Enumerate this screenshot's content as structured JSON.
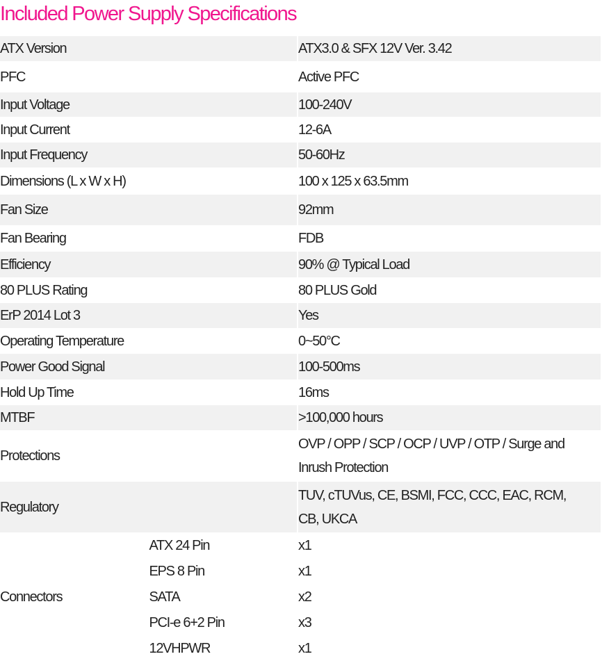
{
  "title": "Included Power Supply Specifications",
  "colors": {
    "title": "#f0168e",
    "stripe": "#f1f1f1"
  },
  "specs": [
    {
      "label": "ATX Version",
      "value": "ATX3.0 & SFX 12V Ver. 3.42"
    },
    {
      "label": "PFC",
      "value": "Active PFC"
    },
    {
      "label": "Input Voltage",
      "value": "100-240V"
    },
    {
      "label": "Input Current",
      "value": "12-6A"
    },
    {
      "label": "Input Frequency",
      "value": "50-60Hz"
    },
    {
      "label": "Dimensions (L x W x H)",
      "value": "100 x 125 x 63.5mm"
    },
    {
      "label": "Fan Size",
      "value": "92mm"
    },
    {
      "label": "Fan Bearing",
      "value": "FDB"
    },
    {
      "label": "Efficiency",
      "value": "90% @ Typical Load"
    },
    {
      "label": "80 PLUS Rating",
      "value": "80 PLUS Gold"
    },
    {
      "label": "ErP 2014 Lot 3",
      "value": "Yes"
    },
    {
      "label": "Operating Temperature",
      "value": "0~50°C"
    },
    {
      "label": "Power Good Signal",
      "value": "100-500ms"
    },
    {
      "label": "Hold Up Time",
      "value": "16ms"
    },
    {
      "label": "MTBF",
      "value": ">100,000 hours"
    },
    {
      "label": "Protections",
      "value": "OVP / OPP / SCP / OCP / UVP / OTP / Surge and Inrush Protection"
    },
    {
      "label": "Regulatory",
      "value": "TUV, cTUVus, CE, BSMI, FCC, CCC, EAC, RCM, CB, UKCA"
    }
  ],
  "connectors": {
    "label": "Connectors",
    "items": [
      {
        "name": "ATX 24 Pin",
        "count": "x1"
      },
      {
        "name": "EPS 8 Pin",
        "count": "x1"
      },
      {
        "name": "SATA",
        "count": "x2"
      },
      {
        "name": "PCI-e 6+2 Pin",
        "count": "x3"
      },
      {
        "name": "12VHPWR",
        "count": "x1"
      }
    ]
  }
}
